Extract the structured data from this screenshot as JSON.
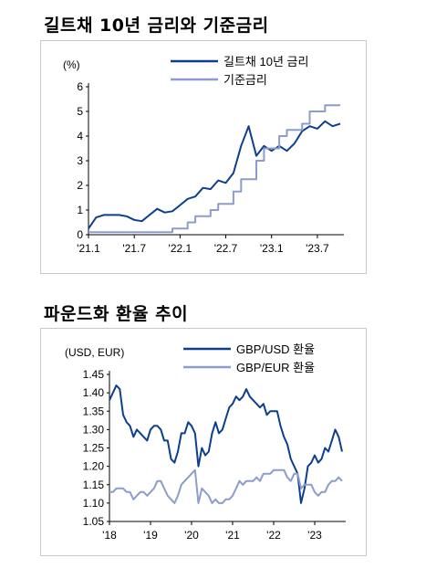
{
  "chart_data": [
    {
      "type": "line",
      "title": "길트채 10년 금리와 기준금리",
      "ylabel": "(%)",
      "ylim": [
        0,
        6
      ],
      "yticks": [
        "0",
        "1",
        "2",
        "3",
        "4",
        "5",
        "6"
      ],
      "xticks": [
        "'21.1",
        "'21.7",
        "'22.1",
        "'22.7",
        "'23.1",
        "'23.7"
      ],
      "xrange": [
        "2021-01",
        "2023-10"
      ],
      "legend_position": "top-right",
      "grid": false,
      "series": [
        {
          "name": "길트채 10년 금리",
          "color": "#0d3f8f",
          "x": [
            "2021-01",
            "2021-02",
            "2021-03",
            "2021-04",
            "2021-05",
            "2021-06",
            "2021-07",
            "2021-08",
            "2021-09",
            "2021-10",
            "2021-11",
            "2021-12",
            "2022-01",
            "2022-02",
            "2022-03",
            "2022-04",
            "2022-05",
            "2022-06",
            "2022-07",
            "2022-08",
            "2022-09",
            "2022-10",
            "2022-11",
            "2022-12",
            "2023-01",
            "2023-02",
            "2023-03",
            "2023-04",
            "2023-05",
            "2023-06",
            "2023-07",
            "2023-08",
            "2023-09",
            "2023-10"
          ],
          "values": [
            0.25,
            0.7,
            0.8,
            0.8,
            0.8,
            0.75,
            0.6,
            0.55,
            0.8,
            1.05,
            0.9,
            0.95,
            1.2,
            1.45,
            1.55,
            1.9,
            1.85,
            2.2,
            2.1,
            2.5,
            3.6,
            4.4,
            3.2,
            3.6,
            3.4,
            3.6,
            3.4,
            3.7,
            4.2,
            4.4,
            4.3,
            4.6,
            4.4,
            4.5
          ]
        },
        {
          "name": "기준금리",
          "color": "#8c9ccc",
          "x": [
            "2021-01",
            "2021-12",
            "2022-02",
            "2022-03",
            "2022-05",
            "2022-06",
            "2022-08",
            "2022-09",
            "2022-11",
            "2022-12",
            "2023-02",
            "2023-03",
            "2023-05",
            "2023-06",
            "2023-08",
            "2023-10"
          ],
          "values": [
            0.1,
            0.25,
            0.5,
            0.75,
            1.0,
            1.25,
            1.75,
            2.25,
            3.0,
            3.5,
            4.0,
            4.25,
            4.5,
            5.0,
            5.25,
            5.25
          ]
        }
      ]
    },
    {
      "type": "line",
      "title": "파운드화 환율 추이",
      "ylabel": "(USD, EUR)",
      "ylim": [
        1.05,
        1.45
      ],
      "yticks": [
        "1.45",
        "1.40",
        "1.35",
        "1.30",
        "1.25",
        "1.20",
        "1.15",
        "1.10",
        "1.05"
      ],
      "xticks": [
        "'18",
        "'19",
        "'20",
        "'21",
        "'22",
        "'23"
      ],
      "xrange": [
        "2018-01",
        "2023-09"
      ],
      "legend_position": "top-right",
      "grid": false,
      "series": [
        {
          "name": "GBP/USD 환율",
          "color": "#0d3f8f",
          "x": [
            "2018-01",
            "2018-02",
            "2018-03",
            "2018-04",
            "2018-05",
            "2018-06",
            "2018-07",
            "2018-08",
            "2018-09",
            "2018-10",
            "2018-11",
            "2018-12",
            "2019-01",
            "2019-02",
            "2019-03",
            "2019-04",
            "2019-05",
            "2019-06",
            "2019-07",
            "2019-08",
            "2019-09",
            "2019-10",
            "2019-11",
            "2019-12",
            "2020-01",
            "2020-02",
            "2020-03",
            "2020-04",
            "2020-05",
            "2020-06",
            "2020-07",
            "2020-08",
            "2020-09",
            "2020-10",
            "2020-11",
            "2020-12",
            "2021-01",
            "2021-02",
            "2021-03",
            "2021-04",
            "2021-05",
            "2021-06",
            "2021-07",
            "2021-08",
            "2021-09",
            "2021-10",
            "2021-11",
            "2021-12",
            "2022-01",
            "2022-02",
            "2022-03",
            "2022-04",
            "2022-05",
            "2022-06",
            "2022-07",
            "2022-08",
            "2022-09",
            "2022-10",
            "2022-11",
            "2022-12",
            "2023-01",
            "2023-02",
            "2023-03",
            "2023-04",
            "2023-05",
            "2023-06",
            "2023-07",
            "2023-08",
            "2023-09"
          ],
          "values": [
            1.38,
            1.4,
            1.42,
            1.41,
            1.34,
            1.32,
            1.31,
            1.28,
            1.3,
            1.29,
            1.28,
            1.27,
            1.3,
            1.31,
            1.31,
            1.3,
            1.27,
            1.27,
            1.22,
            1.21,
            1.24,
            1.29,
            1.29,
            1.32,
            1.31,
            1.29,
            1.2,
            1.25,
            1.23,
            1.24,
            1.29,
            1.32,
            1.29,
            1.3,
            1.33,
            1.36,
            1.37,
            1.39,
            1.38,
            1.39,
            1.41,
            1.39,
            1.38,
            1.37,
            1.36,
            1.37,
            1.34,
            1.35,
            1.35,
            1.35,
            1.31,
            1.28,
            1.26,
            1.22,
            1.2,
            1.18,
            1.1,
            1.14,
            1.2,
            1.21,
            1.23,
            1.21,
            1.22,
            1.25,
            1.24,
            1.27,
            1.3,
            1.28,
            1.24
          ]
        },
        {
          "name": "GBP/EUR 환율",
          "color": "#8c9ccc",
          "x": [
            "2018-01",
            "2018-02",
            "2018-03",
            "2018-04",
            "2018-05",
            "2018-06",
            "2018-07",
            "2018-08",
            "2018-09",
            "2018-10",
            "2018-11",
            "2018-12",
            "2019-01",
            "2019-02",
            "2019-03",
            "2019-04",
            "2019-05",
            "2019-06",
            "2019-07",
            "2019-08",
            "2019-09",
            "2019-10",
            "2019-11",
            "2019-12",
            "2020-01",
            "2020-02",
            "2020-03",
            "2020-04",
            "2020-05",
            "2020-06",
            "2020-07",
            "2020-08",
            "2020-09",
            "2020-10",
            "2020-11",
            "2020-12",
            "2021-01",
            "2021-02",
            "2021-03",
            "2021-04",
            "2021-05",
            "2021-06",
            "2021-07",
            "2021-08",
            "2021-09",
            "2021-10",
            "2021-11",
            "2021-12",
            "2022-01",
            "2022-02",
            "2022-03",
            "2022-04",
            "2022-05",
            "2022-06",
            "2022-07",
            "2022-08",
            "2022-09",
            "2022-10",
            "2022-11",
            "2022-12",
            "2023-01",
            "2023-02",
            "2023-03",
            "2023-04",
            "2023-05",
            "2023-06",
            "2023-07",
            "2023-08",
            "2023-09"
          ],
          "values": [
            1.13,
            1.13,
            1.14,
            1.14,
            1.14,
            1.13,
            1.13,
            1.11,
            1.12,
            1.13,
            1.13,
            1.12,
            1.13,
            1.14,
            1.16,
            1.16,
            1.14,
            1.12,
            1.11,
            1.1,
            1.12,
            1.15,
            1.16,
            1.17,
            1.18,
            1.19,
            1.1,
            1.14,
            1.13,
            1.12,
            1.1,
            1.11,
            1.1,
            1.1,
            1.11,
            1.11,
            1.12,
            1.14,
            1.16,
            1.15,
            1.16,
            1.16,
            1.16,
            1.17,
            1.16,
            1.18,
            1.18,
            1.18,
            1.19,
            1.19,
            1.19,
            1.19,
            1.17,
            1.16,
            1.18,
            1.18,
            1.14,
            1.15,
            1.15,
            1.15,
            1.13,
            1.12,
            1.13,
            1.13,
            1.15,
            1.16,
            1.16,
            1.17,
            1.16
          ]
        }
      ]
    }
  ]
}
